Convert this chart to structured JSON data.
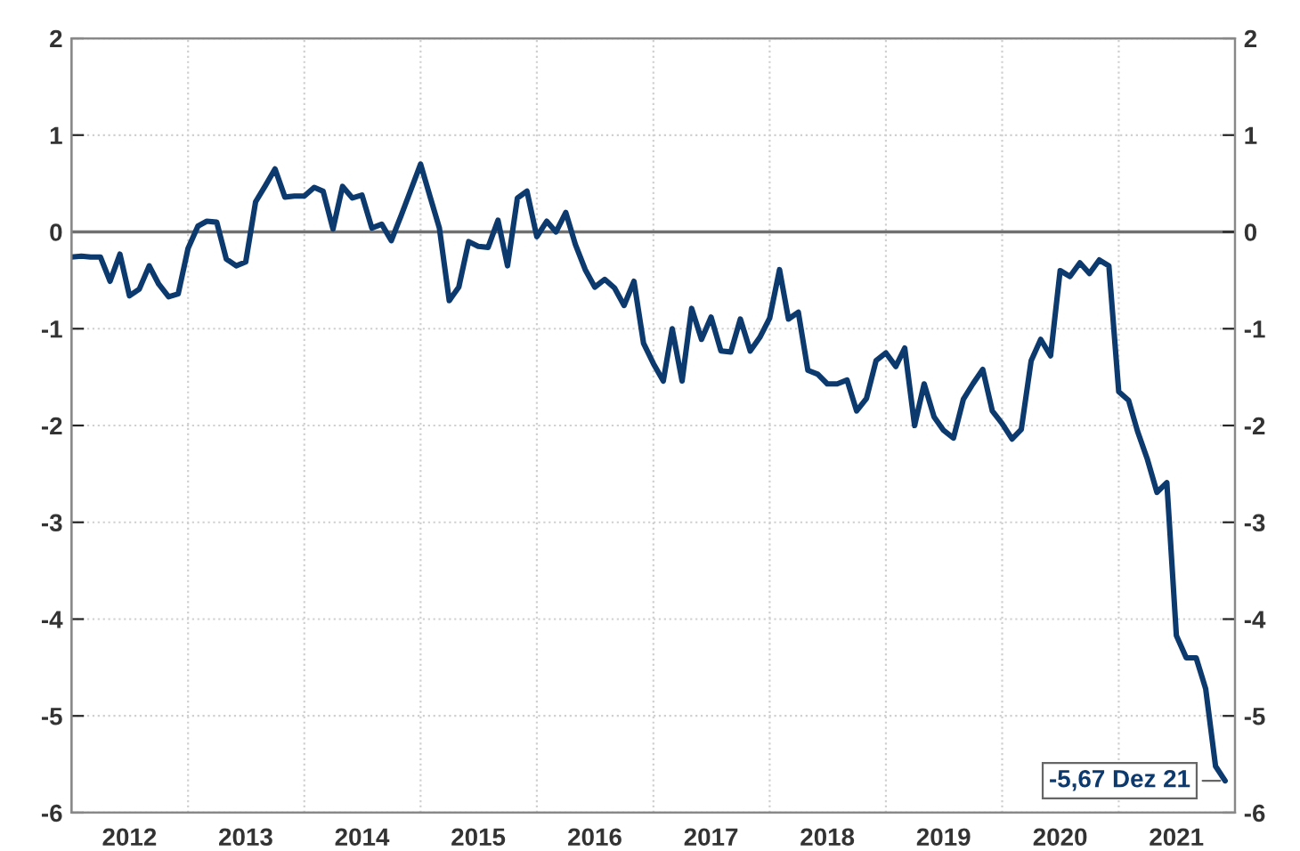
{
  "chart_data": {
    "type": "line",
    "x": [
      "2012-01",
      "2012-02",
      "2012-03",
      "2012-04",
      "2012-05",
      "2012-06",
      "2012-07",
      "2012-08",
      "2012-09",
      "2012-10",
      "2012-11",
      "2012-12",
      "2013-01",
      "2013-02",
      "2013-03",
      "2013-04",
      "2013-05",
      "2013-06",
      "2013-07",
      "2013-08",
      "2013-09",
      "2013-10",
      "2013-11",
      "2013-12",
      "2014-01",
      "2014-02",
      "2014-03",
      "2014-04",
      "2014-05",
      "2014-06",
      "2014-07",
      "2014-08",
      "2014-09",
      "2014-10",
      "2014-11",
      "2014-12",
      "2015-01",
      "2015-02",
      "2015-03",
      "2015-04",
      "2015-05",
      "2015-06",
      "2015-07",
      "2015-08",
      "2015-09",
      "2015-10",
      "2015-11",
      "2015-12",
      "2016-01",
      "2016-02",
      "2016-03",
      "2016-04",
      "2016-05",
      "2016-06",
      "2016-07",
      "2016-08",
      "2016-09",
      "2016-10",
      "2016-11",
      "2016-12",
      "2017-01",
      "2017-02",
      "2017-03",
      "2017-04",
      "2017-05",
      "2017-06",
      "2017-07",
      "2017-08",
      "2017-09",
      "2017-10",
      "2017-11",
      "2017-12",
      "2018-01",
      "2018-02",
      "2018-03",
      "2018-04",
      "2018-05",
      "2018-06",
      "2018-07",
      "2018-08",
      "2018-09",
      "2018-10",
      "2018-11",
      "2018-12",
      "2019-01",
      "2019-02",
      "2019-03",
      "2019-04",
      "2019-05",
      "2019-06",
      "2019-07",
      "2019-08",
      "2019-09",
      "2019-10",
      "2019-11",
      "2019-12",
      "2020-01",
      "2020-02",
      "2020-03",
      "2020-04",
      "2020-05",
      "2020-06",
      "2020-07",
      "2020-08",
      "2020-09",
      "2020-10",
      "2020-11",
      "2020-12",
      "2021-01",
      "2021-02",
      "2021-03",
      "2021-04",
      "2021-05",
      "2021-06",
      "2021-07",
      "2021-08",
      "2021-09",
      "2021-10",
      "2021-11",
      "2021-12"
    ],
    "series": [
      {
        "color": "#0d3a6e",
        "values": [
          -0.26,
          -0.25,
          -0.26,
          -0.26,
          -0.51,
          -0.23,
          -0.66,
          -0.59,
          -0.35,
          -0.54,
          -0.67,
          -0.64,
          -0.17,
          0.06,
          0.11,
          0.1,
          -0.28,
          -0.35,
          -0.31,
          0.31,
          0.48,
          0.65,
          0.36,
          0.37,
          0.37,
          0.46,
          0.42,
          0.03,
          0.47,
          0.35,
          0.38,
          0.04,
          0.08,
          -0.09,
          0.17,
          0.43,
          0.7,
          0.35,
          0.04,
          -0.71,
          -0.57,
          -0.1,
          -0.15,
          -0.16,
          0.12,
          -0.35,
          0.35,
          0.42,
          -0.05,
          0.11,
          0.0,
          0.2,
          -0.13,
          -0.39,
          -0.57,
          -0.49,
          -0.58,
          -0.76,
          -0.51,
          -1.15,
          -1.36,
          -1.54,
          -1.0,
          -1.54,
          -0.79,
          -1.11,
          -0.88,
          -1.23,
          -1.24,
          -0.9,
          -1.23,
          -1.09,
          -0.89,
          -0.39,
          -0.9,
          -0.83,
          -1.43,
          -1.47,
          -1.57,
          -1.57,
          -1.53,
          -1.85,
          -1.72,
          -1.33,
          -1.25,
          -1.39,
          -1.2,
          -2.0,
          -1.57,
          -1.91,
          -2.05,
          -2.13,
          -1.73,
          -1.57,
          -1.42,
          -1.85,
          -1.98,
          -2.14,
          -2.04,
          -1.33,
          -1.11,
          -1.28,
          -0.4,
          -0.46,
          -0.32,
          -0.43,
          -0.29,
          -0.35,
          -1.65,
          -1.74,
          -2.06,
          -2.35,
          -2.69,
          -2.59,
          -4.17,
          -4.4,
          -4.4,
          -4.72,
          -5.52,
          -5.67
        ]
      }
    ],
    "xlim": [
      "2012-01",
      "2022-01"
    ],
    "xticks": [
      {
        "value": "2013-01",
        "label": null
      },
      {
        "value": "2014-01",
        "label": null
      },
      {
        "value": "2015-01",
        "label": null
      },
      {
        "value": "2016-01",
        "label": null
      },
      {
        "value": "2017-01",
        "label": null
      },
      {
        "value": "2018-01",
        "label": null
      },
      {
        "value": "2019-01",
        "label": null
      },
      {
        "value": "2020-01",
        "label": null
      },
      {
        "value": "2021-01",
        "label": null
      },
      {
        "value": "2012-07",
        "label": "2012"
      },
      {
        "value": "2013-07",
        "label": "2013"
      },
      {
        "value": "2014-07",
        "label": "2014"
      },
      {
        "value": "2015-07",
        "label": "2015"
      },
      {
        "value": "2016-07",
        "label": "2016"
      },
      {
        "value": "2017-07",
        "label": "2017"
      },
      {
        "value": "2018-07",
        "label": "2018"
      },
      {
        "value": "2019-07",
        "label": "2019"
      },
      {
        "value": "2020-07",
        "label": "2020"
      },
      {
        "value": "2021-07",
        "label": "2021"
      }
    ],
    "ylim": [
      -6,
      2
    ],
    "yticks": [
      -6,
      -5,
      -4,
      -3,
      -2,
      -1,
      0,
      1,
      2
    ],
    "y2lim": [
      -6,
      2
    ],
    "y2ticks": [
      -6,
      -5,
      -4,
      -3,
      -2,
      -1,
      0,
      1,
      2
    ],
    "ref_lines": [
      {
        "axis": "y",
        "value": 0,
        "color": "#707070"
      }
    ],
    "annotations": [
      {
        "text": "-5,67 Dez 21",
        "x": "2021-12",
        "y": -5.67
      }
    ],
    "grid": true,
    "legend": false,
    "marker": "none",
    "line_style": "solid"
  }
}
